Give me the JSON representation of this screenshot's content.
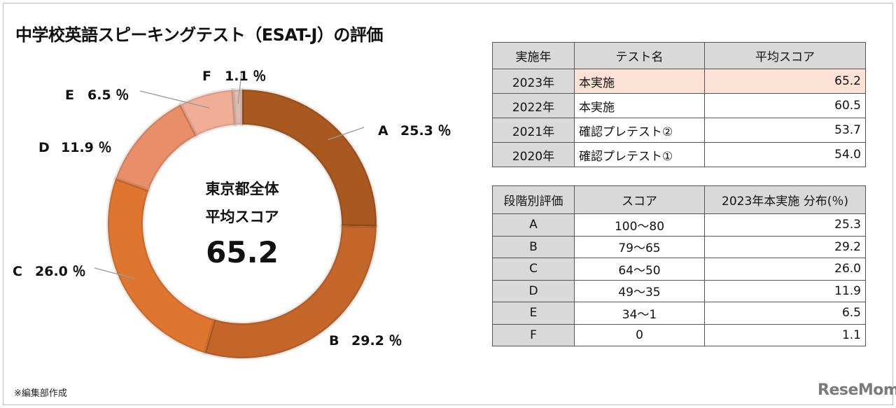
{
  "title": "中学校英語スピーキングテスト（ESAT-J）の評価",
  "center": {
    "line1": "東京都全体",
    "line2": "平均スコア",
    "value": "65.2"
  },
  "chart_data": {
    "type": "pie",
    "variant": "donut",
    "title": "中学校英語スピーキングテスト（ESAT-J）の評価",
    "categories": [
      "A",
      "B",
      "C",
      "D",
      "E",
      "F"
    ],
    "values": [
      25.3,
      29.2,
      26.0,
      11.9,
      6.5,
      1.1
    ],
    "labels": [
      "25.3 ％",
      "29.2 ％",
      "26.0 ％",
      "11.9 ％",
      "6.5 ％",
      "1.1 ％"
    ],
    "colors": [
      "#A9581F",
      "#C4662A",
      "#DE7630",
      "#E88E68",
      "#EFAE95",
      "#DDBBB0"
    ]
  },
  "table1": {
    "headers": [
      "実施年",
      "テスト名",
      "平均スコア"
    ],
    "rows": [
      [
        "2023年",
        "本実施",
        "65.2"
      ],
      [
        "2022年",
        "本実施",
        "60.5"
      ],
      [
        "2021年",
        "確認プレテスト②",
        "53.7"
      ],
      [
        "2020年",
        "確認プレテスト①",
        "54.0"
      ]
    ]
  },
  "table2": {
    "headers": [
      "段階別評価",
      "スコア",
      "2023年本実施 分布(％)"
    ],
    "rows": [
      [
        "A",
        "100～80",
        "25.3"
      ],
      [
        "B",
        "79～65",
        "29.2"
      ],
      [
        "C",
        "64～50",
        "26.0"
      ],
      [
        "D",
        "49～35",
        "11.9"
      ],
      [
        "E",
        "34～1",
        "6.5"
      ],
      [
        "F",
        "0",
        "1.1"
      ]
    ]
  },
  "note": "※編集部作成",
  "logo": "ReseMom"
}
